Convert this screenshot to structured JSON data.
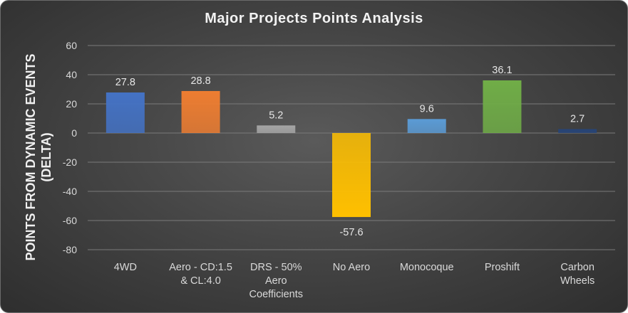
{
  "chart_data": {
    "type": "bar",
    "title": "Major Projects Points Analysis",
    "xlabel": "",
    "ylabel": "POINTS FROM DYNAMIC EVENTS (DELTA)",
    "ylim": [
      -80,
      60
    ],
    "yticks": [
      60,
      40,
      20,
      0,
      -20,
      -40,
      -60,
      -80
    ],
    "grid": true,
    "categories": [
      "4WD",
      "Aero - CD:1.5 & CL:4.0",
      "DRS - 50% Aero Coefficients",
      "No Aero",
      "Monocoque",
      "Proshift",
      "Carbon Wheels"
    ],
    "category_lines": [
      [
        "4WD"
      ],
      [
        "Aero - CD:1.5",
        "& CL:4.0"
      ],
      [
        "DRS - 50%",
        "Aero",
        "Coefficients"
      ],
      [
        "No Aero"
      ],
      [
        "Monocoque"
      ],
      [
        "Proshift"
      ],
      [
        "Carbon",
        "Wheels"
      ]
    ],
    "values": [
      27.8,
      28.8,
      5.2,
      -57.6,
      9.6,
      36.1,
      2.7
    ],
    "data_labels": [
      "27.8",
      "28.8",
      "5.2",
      "-57.6",
      "9.6",
      "36.1",
      "2.7"
    ],
    "colors": [
      "#4472c4",
      "#ed7d31",
      "#a5a5a5",
      "#ffc000",
      "#5b9bd5",
      "#70ad47",
      "#264478"
    ]
  }
}
